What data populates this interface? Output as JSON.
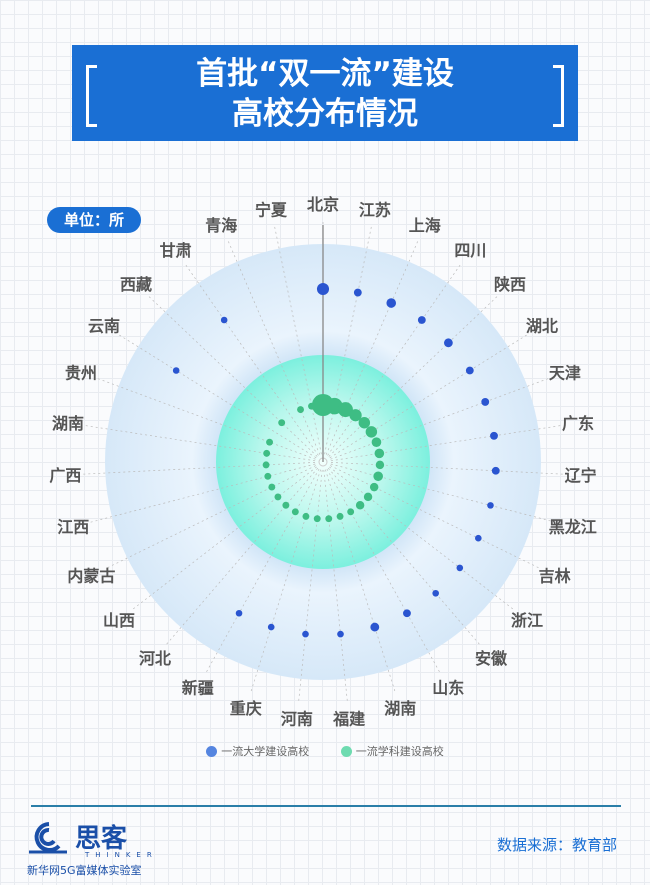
{
  "title_line1": "首批“双一流”建设",
  "title_line2": "高校分布情况",
  "unit": "单位：所",
  "colors": {
    "brand": "#1a6fd4",
    "university": "#2a55d0",
    "discipline": "#3ebd84",
    "inner_circle": "#7cf0de",
    "outer_circle": "#dcecfb"
  },
  "chart_data": {
    "type": "polar-bubble",
    "categories": [
      "北京",
      "江苏",
      "上海",
      "四川",
      "陕西",
      "湖北",
      "天津",
      "广东",
      "辽宁",
      "黑龙江",
      "吉林",
      "浙江",
      "安徽",
      "山东",
      "湖南",
      "福建",
      "河南",
      "重庆",
      "新疆",
      "河北",
      "山西",
      "内蒙古",
      "江西",
      "广西",
      "湖南",
      "贵州",
      "云南",
      "西藏",
      "甘肃",
      "青海",
      "宁夏"
    ],
    "series": [
      {
        "name": "一流大学建设高校",
        "values": [
          8,
          2,
          4,
          2,
          3,
          2,
          2,
          2,
          2,
          1,
          1,
          1,
          1,
          2,
          3,
          1,
          1,
          1,
          1,
          0,
          0,
          0,
          0,
          0,
          0,
          0,
          1,
          0,
          1,
          0,
          0
        ]
      },
      {
        "name": "一流学科建设高校",
        "values": [
          26,
          13,
          10,
          6,
          5,
          5,
          3,
          3,
          2,
          3,
          2,
          2,
          2,
          1,
          1,
          1,
          1,
          1,
          1,
          1,
          1,
          1,
          1,
          1,
          1,
          1,
          0,
          1,
          0,
          1,
          1
        ]
      }
    ],
    "legend": "bottom"
  },
  "footer": {
    "source": "数据来源：教育部",
    "logo_text": "思客",
    "logo_sub": "THINKER",
    "lab": "新华网5G富媒体实验室"
  }
}
